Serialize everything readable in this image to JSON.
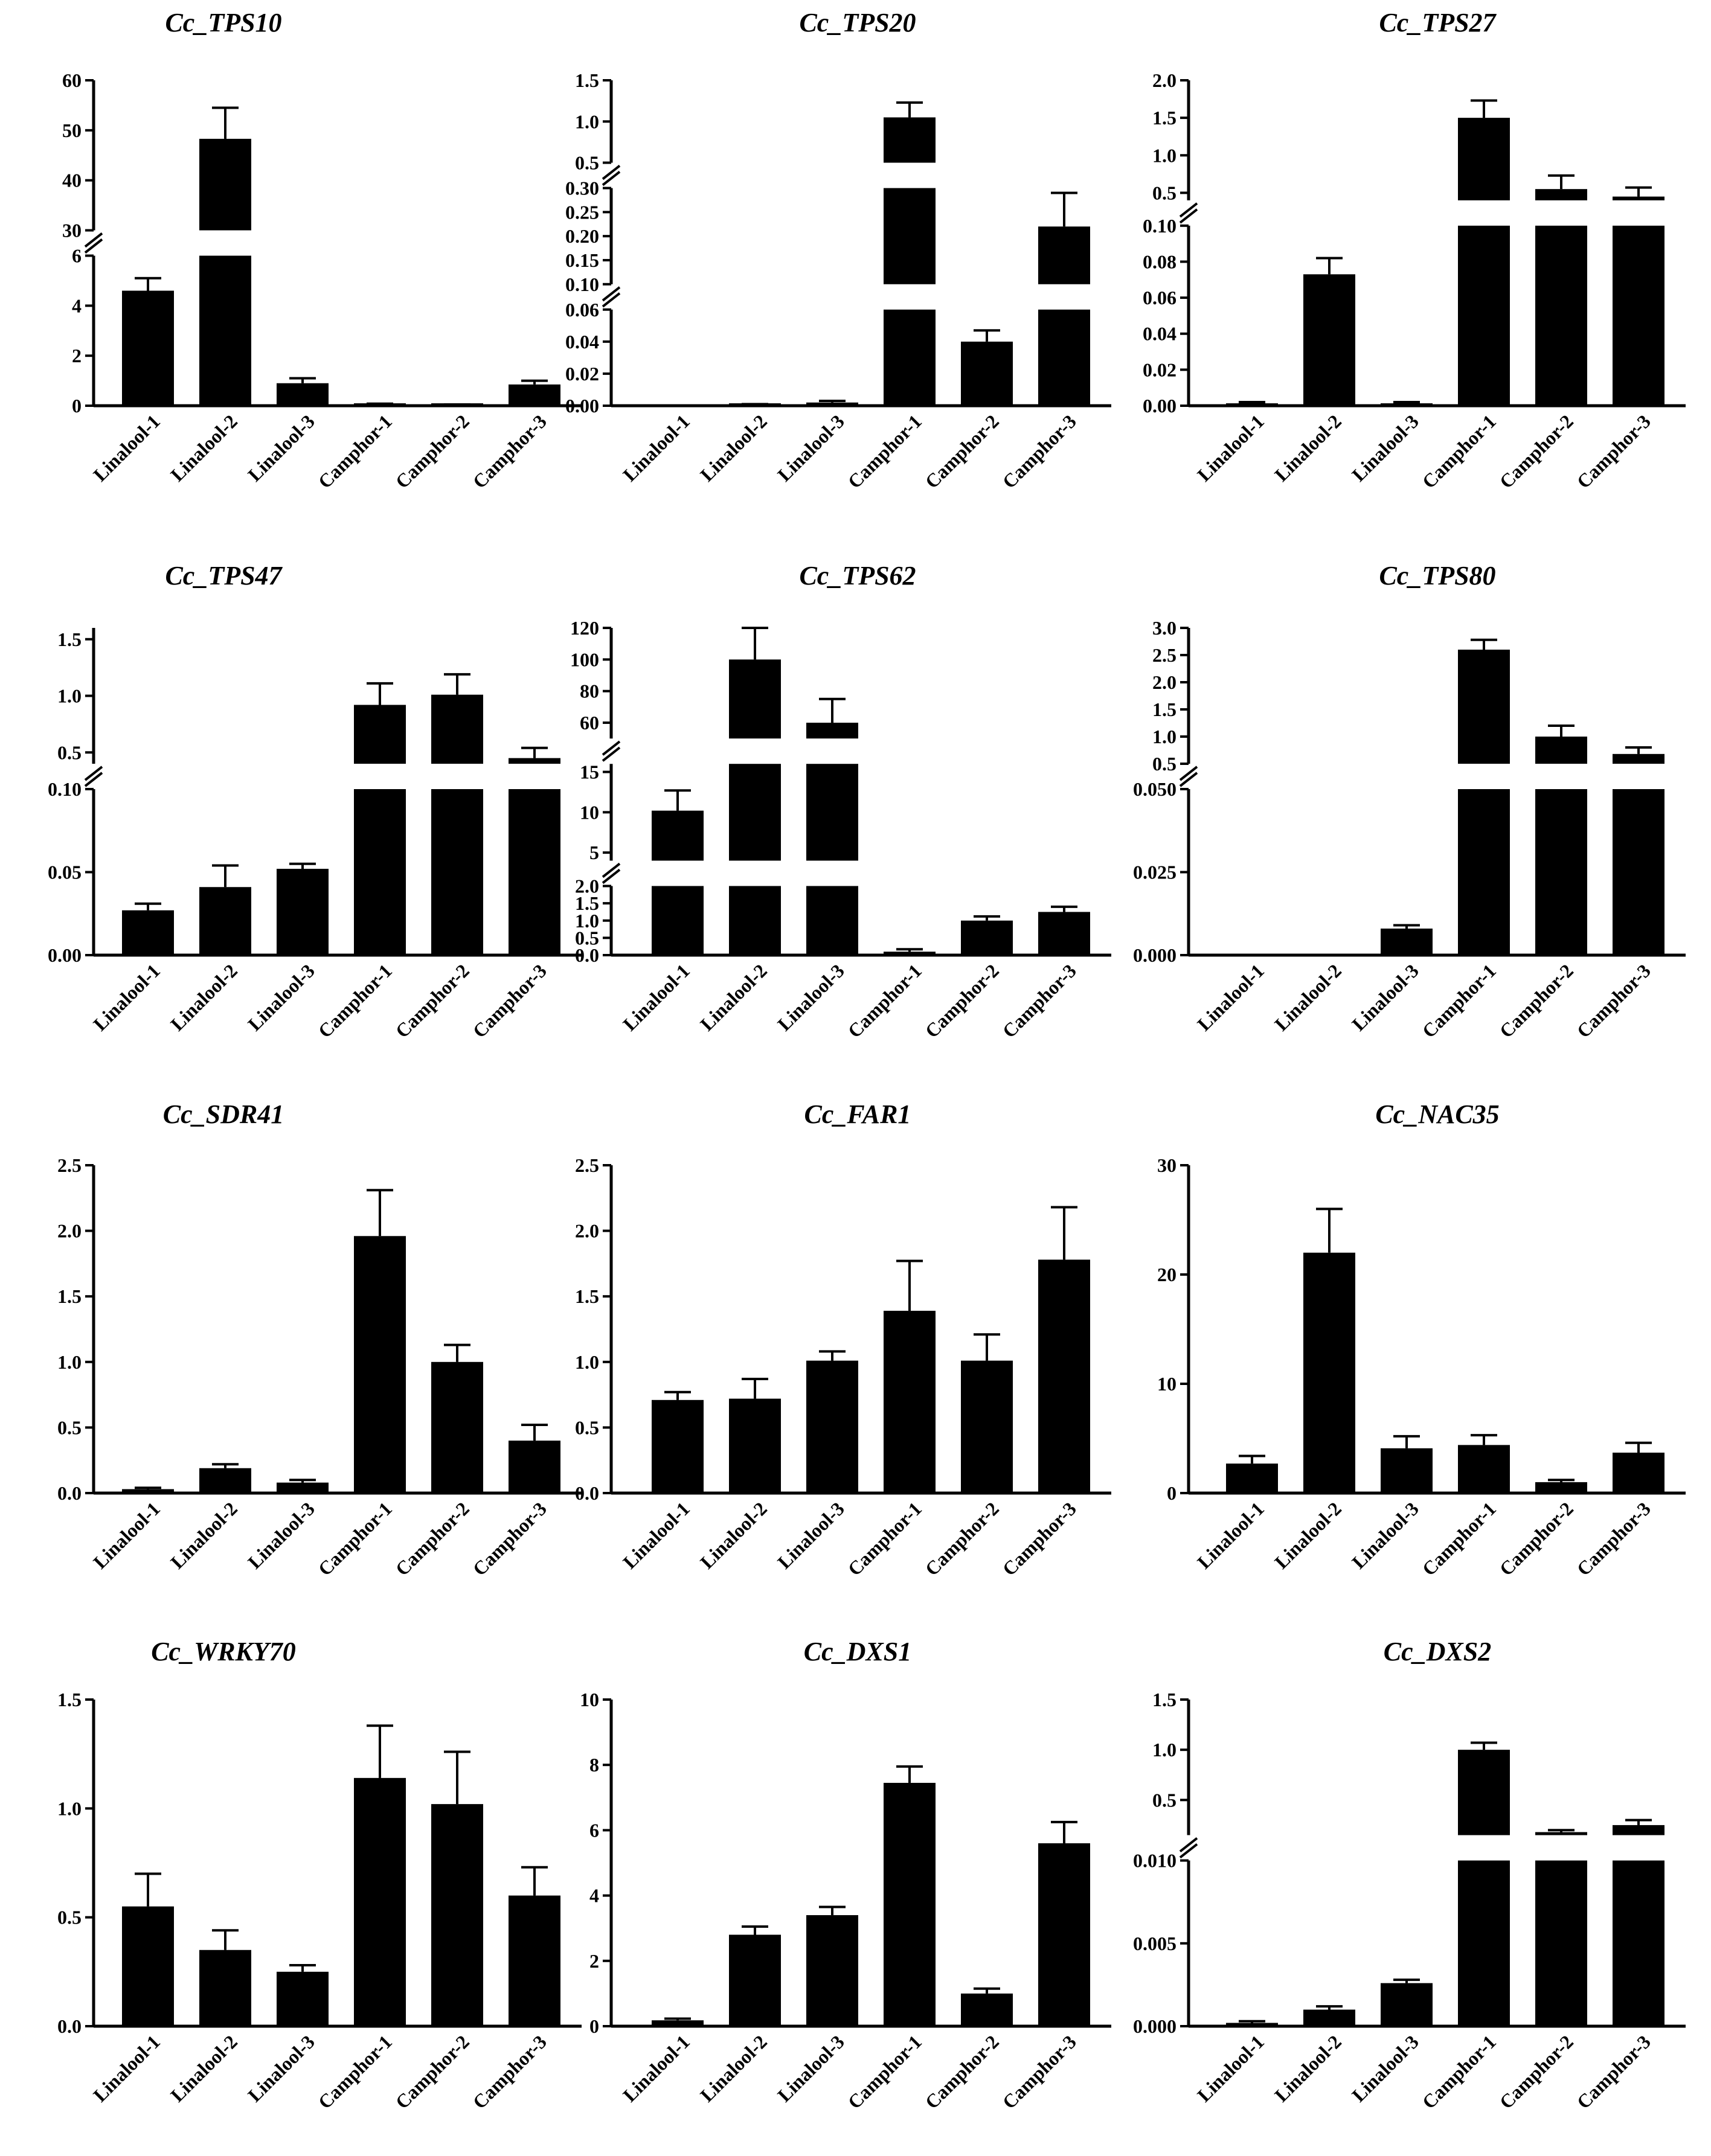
{
  "figure_colors": {
    "bar": "#000000",
    "axis": "#000000",
    "background": "#ffffff"
  },
  "chart_data": [
    {
      "type": "bar",
      "title": "Cc_TPS10",
      "categories": [
        "Linalool-1",
        "Linalool-2",
        "Linalool-3",
        "Camphor-1",
        "Camphor-2",
        "Camphor-3"
      ],
      "values": [
        4.6,
        48.3,
        0.9,
        0.05,
        0.03,
        0.85
      ],
      "errors": [
        0.5,
        6.2,
        0.2,
        0.03,
        0.02,
        0.15
      ],
      "segments": [
        {
          "range": [
            0,
            6
          ],
          "ticks": [
            0,
            2,
            4,
            6
          ]
        },
        {
          "range": [
            30,
            60
          ],
          "ticks": [
            30,
            40,
            50,
            60
          ]
        }
      ]
    },
    {
      "type": "bar",
      "title": "Cc_TPS20",
      "categories": [
        "Linalool-1",
        "Linalool-2",
        "Linalool-3",
        "Camphor-1",
        "Camphor-2",
        "Camphor-3"
      ],
      "values": [
        0.0,
        0.0005,
        0.002,
        1.05,
        0.04,
        0.22
      ],
      "errors": [
        0.0,
        0.0005,
        0.001,
        0.18,
        0.007,
        0.07
      ],
      "segments": [
        {
          "range": [
            0,
            0.06
          ],
          "ticks": [
            "0.00",
            "0.02",
            "0.04",
            "0.06"
          ]
        },
        {
          "range": [
            0.1,
            0.3
          ],
          "ticks": [
            "0.10",
            "0.15",
            "0.20",
            "0.25",
            "0.30"
          ]
        },
        {
          "range": [
            0.5,
            1.5
          ],
          "ticks": [
            "0.5",
            "1.0",
            "1.5"
          ]
        }
      ]
    },
    {
      "type": "bar",
      "title": "Cc_TPS27",
      "categories": [
        "Linalool-1",
        "Linalool-2",
        "Linalool-3",
        "Camphor-1",
        "Camphor-2",
        "Camphor-3"
      ],
      "values": [
        0.001,
        0.073,
        0.001,
        1.5,
        0.55,
        0.45
      ],
      "errors": [
        0.001,
        0.009,
        0.001,
        0.23,
        0.18,
        0.12
      ],
      "segments": [
        {
          "range": [
            0,
            0.1
          ],
          "ticks": [
            "0.00",
            "0.02",
            "0.04",
            "0.06",
            "0.08",
            "0.10"
          ]
        },
        {
          "range": [
            0.4,
            2.0
          ],
          "ticks": [
            "0.5",
            "1.0",
            "1.5",
            "2.0"
          ]
        }
      ]
    },
    {
      "type": "bar",
      "title": "Cc_TPS47",
      "categories": [
        "Linalool-1",
        "Linalool-2",
        "Linalool-3",
        "Camphor-1",
        "Camphor-2",
        "Camphor-3"
      ],
      "values": [
        0.027,
        0.041,
        0.052,
        0.92,
        1.01,
        0.45
      ],
      "errors": [
        0.004,
        0.013,
        0.003,
        0.19,
        0.18,
        0.09
      ],
      "segments": [
        {
          "range": [
            0,
            0.1
          ],
          "ticks": [
            "0.00",
            "0.05",
            "0.10"
          ]
        },
        {
          "range": [
            0.4,
            1.6
          ],
          "ticks": [
            "0.5",
            "1.0",
            "1.5"
          ]
        }
      ]
    },
    {
      "type": "bar",
      "title": "Cc_TPS62",
      "categories": [
        "Linalool-1",
        "Linalool-2",
        "Linalool-3",
        "Camphor-1",
        "Camphor-2",
        "Camphor-3"
      ],
      "values": [
        10.2,
        100,
        60,
        0.1,
        1.0,
        1.25
      ],
      "errors": [
        2.5,
        20,
        15,
        0.07,
        0.12,
        0.15
      ],
      "segments": [
        {
          "range": [
            0,
            2
          ],
          "ticks": [
            "0.0",
            "0.5",
            "1.0",
            "1.5",
            "2.0"
          ]
        },
        {
          "range": [
            4,
            16
          ],
          "ticks": [
            "5",
            "10",
            "15"
          ]
        },
        {
          "range": [
            50,
            120
          ],
          "ticks": [
            "60",
            "80",
            "100",
            "120"
          ]
        }
      ]
    },
    {
      "type": "bar",
      "title": "Cc_TPS80",
      "categories": [
        "Linalool-1",
        "Linalool-2",
        "Linalool-3",
        "Camphor-1",
        "Camphor-2",
        "Camphor-3"
      ],
      "values": [
        0.0,
        0.0,
        0.008,
        2.6,
        1.0,
        0.68
      ],
      "errors": [
        0.0,
        0.0,
        0.001,
        0.18,
        0.2,
        0.12
      ],
      "segments": [
        {
          "range": [
            0,
            0.05
          ],
          "ticks": [
            "0.000",
            "0.025",
            "0.050"
          ]
        },
        {
          "range": [
            0.5,
            3.0
          ],
          "ticks": [
            "0.5",
            "1.0",
            "1.5",
            "2.0",
            "2.5",
            "3.0"
          ]
        }
      ]
    },
    {
      "type": "bar",
      "title": "Cc_SDR41",
      "categories": [
        "Linalool-1",
        "Linalool-2",
        "Linalool-3",
        "Camphor-1",
        "Camphor-2",
        "Camphor-3"
      ],
      "values": [
        0.03,
        0.19,
        0.08,
        1.96,
        1.0,
        0.4
      ],
      "errors": [
        0.01,
        0.03,
        0.02,
        0.35,
        0.13,
        0.12
      ],
      "segments": [
        {
          "range": [
            0,
            2.5
          ],
          "ticks": [
            "0.0",
            "0.5",
            "1.0",
            "1.5",
            "2.0",
            "2.5"
          ]
        }
      ]
    },
    {
      "type": "bar",
      "title": "Cc_FAR1",
      "categories": [
        "Linalool-1",
        "Linalool-2",
        "Linalool-3",
        "Camphor-1",
        "Camphor-2",
        "Camphor-3"
      ],
      "values": [
        0.71,
        0.72,
        1.01,
        1.39,
        1.01,
        1.78
      ],
      "errors": [
        0.06,
        0.15,
        0.07,
        0.38,
        0.2,
        0.4
      ],
      "segments": [
        {
          "range": [
            0,
            2.5
          ],
          "ticks": [
            "0.0",
            "0.5",
            "1.0",
            "1.5",
            "2.0",
            "2.5"
          ]
        }
      ]
    },
    {
      "type": "bar",
      "title": "Cc_NAC35",
      "categories": [
        "Linalool-1",
        "Linalool-2",
        "Linalool-3",
        "Camphor-1",
        "Camphor-2",
        "Camphor-3"
      ],
      "values": [
        2.7,
        22.0,
        4.1,
        4.4,
        1.0,
        3.7
      ],
      "errors": [
        0.7,
        4.0,
        1.1,
        0.9,
        0.2,
        0.9
      ],
      "segments": [
        {
          "range": [
            0,
            30
          ],
          "ticks": [
            "0",
            "10",
            "20",
            "30"
          ]
        }
      ]
    },
    {
      "type": "bar",
      "title": "Cc_WRKY70",
      "categories": [
        "Linalool-1",
        "Linalool-2",
        "Linalool-3",
        "Camphor-1",
        "Camphor-2",
        "Camphor-3"
      ],
      "values": [
        0.55,
        0.35,
        0.25,
        1.14,
        1.02,
        0.6
      ],
      "errors": [
        0.15,
        0.09,
        0.03,
        0.24,
        0.24,
        0.13
      ],
      "segments": [
        {
          "range": [
            0,
            1.5
          ],
          "ticks": [
            "0.0",
            "0.5",
            "1.0",
            "1.5"
          ]
        }
      ]
    },
    {
      "type": "bar",
      "title": "Cc_DXS1",
      "categories": [
        "Linalool-1",
        "Linalool-2",
        "Linalool-3",
        "Camphor-1",
        "Camphor-2",
        "Camphor-3"
      ],
      "values": [
        0.18,
        2.8,
        3.4,
        7.45,
        1.0,
        5.6
      ],
      "errors": [
        0.05,
        0.25,
        0.25,
        0.5,
        0.15,
        0.65
      ],
      "segments": [
        {
          "range": [
            0,
            10
          ],
          "ticks": [
            "0",
            "2",
            "4",
            "6",
            "8",
            "10"
          ]
        }
      ]
    },
    {
      "type": "bar",
      "title": "Cc_DXS2",
      "categories": [
        "Linalool-1",
        "Linalool-2",
        "Linalool-3",
        "Camphor-1",
        "Camphor-2",
        "Camphor-3"
      ],
      "values": [
        0.0002,
        0.001,
        0.0026,
        1.0,
        0.18,
        0.25
      ],
      "errors": [
        0.0001,
        0.0002,
        0.0002,
        0.07,
        0.02,
        0.05
      ],
      "segments": [
        {
          "range": [
            0,
            0.01
          ],
          "ticks": [
            "0.000",
            "0.005",
            "0.010"
          ]
        },
        {
          "range": [
            0.15,
            1.5
          ],
          "ticks": [
            "0.5",
            "1.0",
            "1.5"
          ]
        }
      ]
    }
  ]
}
